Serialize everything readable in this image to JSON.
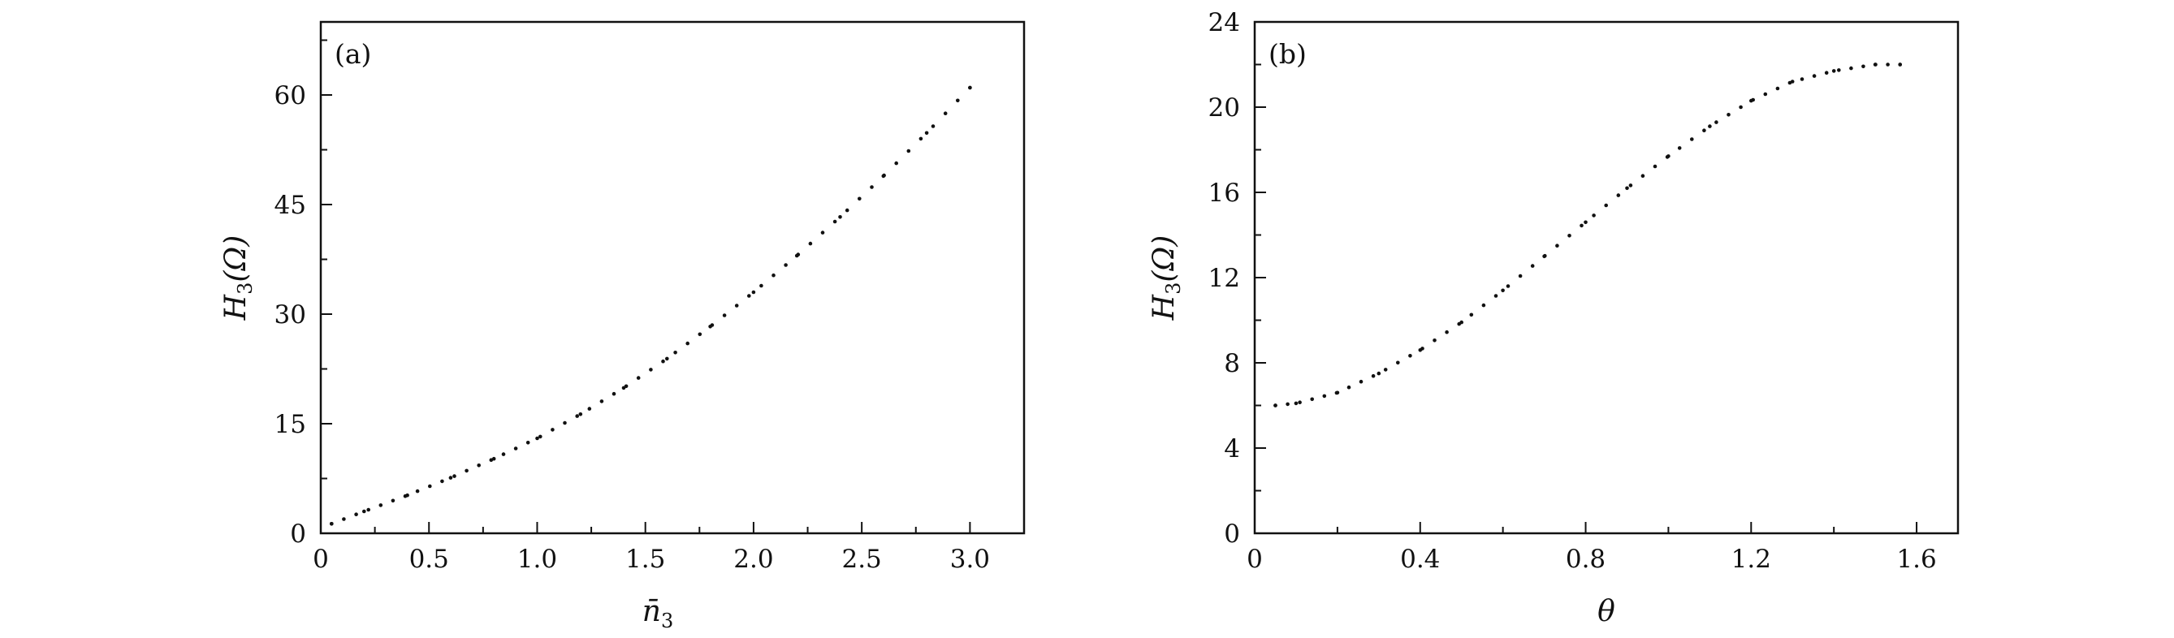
{
  "chart_data": [
    {
      "type": "scatter",
      "panel_label": "(a)",
      "xlabel": "n̄",
      "xlabel_sub": "3",
      "ylabel": "H",
      "ylabel_sub": "3",
      "ylabel_arg": "(Ω)",
      "xlim": [
        0,
        3.25
      ],
      "ylim": [
        0,
        70
      ],
      "xticks": [
        0,
        0.5,
        1.0,
        1.5,
        2.0,
        2.5,
        3.0
      ],
      "xtick_labels": [
        "0",
        "0.5",
        "1.0",
        "1.5",
        "2.0",
        "2.5",
        "3.0"
      ],
      "yticks": [
        0,
        15,
        30,
        45,
        60
      ],
      "ytick_labels": [
        "0",
        "15",
        "30",
        "45",
        "60"
      ],
      "grid": false,
      "marker": "dotted",
      "x": [
        0.05,
        0.2,
        0.4,
        0.6,
        0.8,
        1.0,
        1.2,
        1.4,
        1.6,
        1.8,
        2.0,
        2.2,
        2.4,
        2.6,
        2.8,
        3.0
      ],
      "y": [
        1.3,
        3.0,
        5.2,
        7.6,
        10.2,
        13.0,
        16.3,
        19.9,
        23.9,
        28.3,
        33.0,
        38.0,
        43.3,
        48.9,
        54.8,
        61.0
      ]
    },
    {
      "type": "scatter",
      "panel_label": "(b)",
      "xlabel": "θ",
      "ylabel": "H",
      "ylabel_sub": "3",
      "ylabel_arg": "(Ω)",
      "xlim": [
        0,
        1.7
      ],
      "ylim": [
        0,
        24
      ],
      "xticks": [
        0,
        0.4,
        0.8,
        1.2,
        1.6
      ],
      "xtick_labels": [
        "0",
        "0.4",
        "0.8",
        "1.2",
        "1.6"
      ],
      "yticks": [
        0,
        4,
        8,
        12,
        16,
        20,
        24
      ],
      "ytick_labels": [
        "0",
        "4",
        "8",
        "12",
        "16",
        "20",
        "24"
      ],
      "grid": false,
      "marker": "dotted",
      "x": [
        0.05,
        0.1,
        0.2,
        0.3,
        0.4,
        0.5,
        0.6,
        0.7,
        0.8,
        0.9,
        1.0,
        1.1,
        1.2,
        1.3,
        1.4,
        1.5,
        1.56
      ],
      "y": [
        6.0,
        6.1,
        6.6,
        7.5,
        8.6,
        9.9,
        11.4,
        13.0,
        14.6,
        16.2,
        17.7,
        19.1,
        20.3,
        21.2,
        21.7,
        22.0,
        22.0
      ]
    }
  ]
}
